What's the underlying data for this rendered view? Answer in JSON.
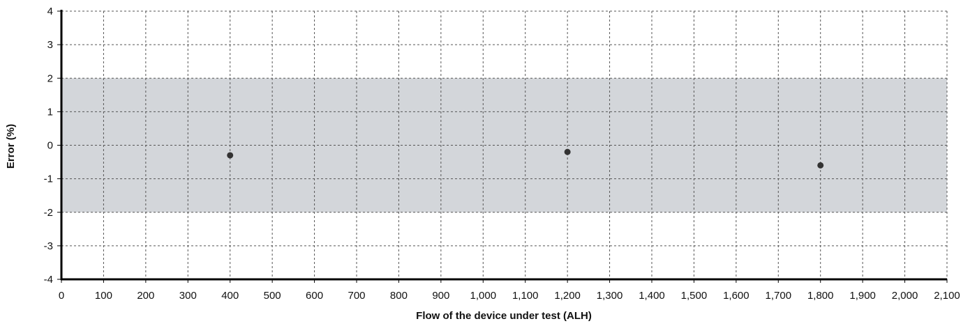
{
  "chart_data": {
    "type": "scatter",
    "title": "",
    "xlabel": "Flow of the device under test (ALH)",
    "ylabel": "Error (%)",
    "xlim": [
      0,
      2100
    ],
    "ylim": [
      -4,
      4
    ],
    "x_ticks": [
      0,
      100,
      200,
      300,
      400,
      500,
      600,
      700,
      800,
      900,
      1000,
      1100,
      1200,
      1300,
      1400,
      1500,
      1600,
      1700,
      1800,
      1900,
      2000,
      2100
    ],
    "x_tick_labels": [
      "0",
      "100",
      "200",
      "300",
      "400",
      "500",
      "600",
      "700",
      "800",
      "900",
      "1,000",
      "1,100",
      "1,200",
      "1,300",
      "1,400",
      "1,500",
      "1,600",
      "1,700",
      "1,800",
      "1,900",
      "2,000",
      "2,100"
    ],
    "y_ticks": [
      4,
      3,
      2,
      1,
      0,
      -1,
      -2,
      -3,
      -4
    ],
    "y_tick_labels": [
      "4",
      "3",
      "2",
      "1",
      "0",
      "-1",
      "-2",
      "-3",
      "-4"
    ],
    "grid": true,
    "tolerance_band": {
      "lower": -2,
      "upper": 2,
      "color": "#d3d6da"
    },
    "series": [
      {
        "points": [
          {
            "x": 400,
            "y": -0.3
          },
          {
            "x": 1200,
            "y": -0.2
          },
          {
            "x": 1800,
            "y": -0.6
          }
        ],
        "color": "#333333"
      }
    ]
  }
}
